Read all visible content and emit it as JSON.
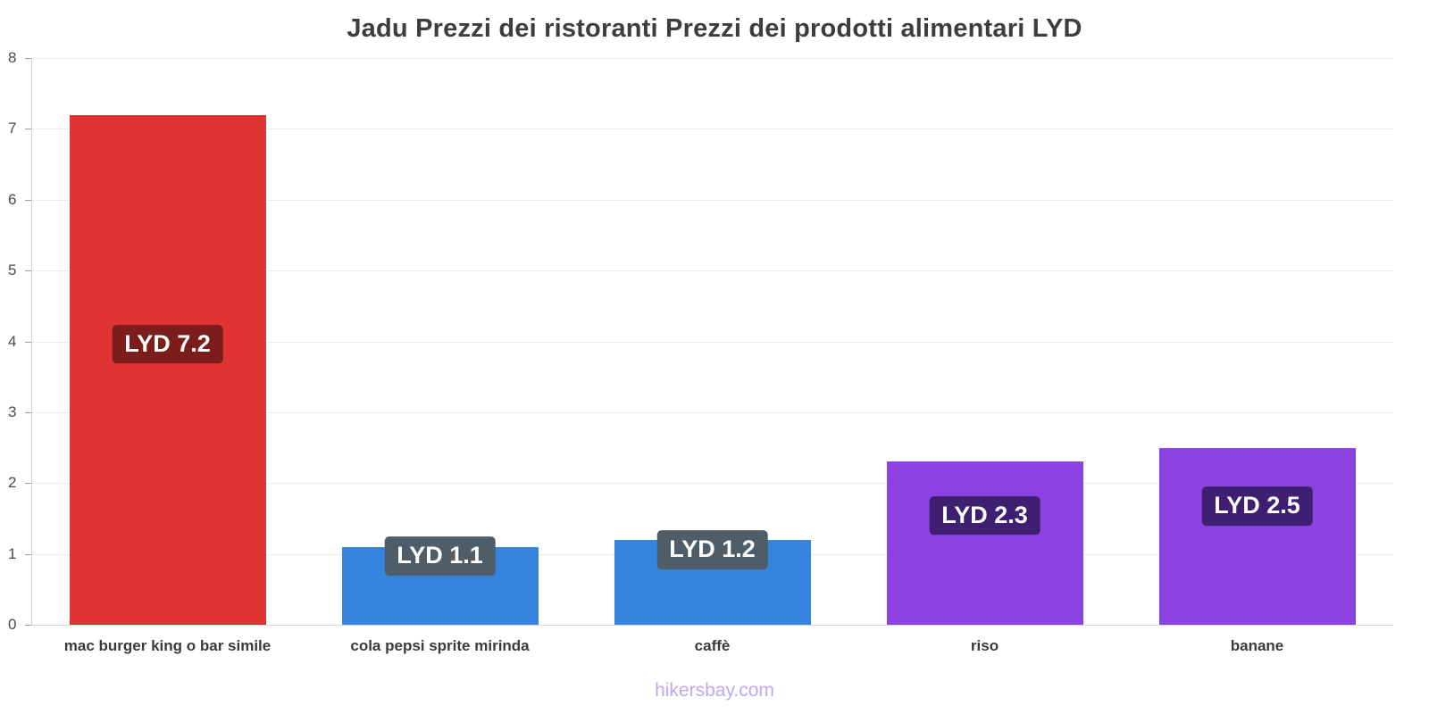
{
  "title": "Jadu Prezzi dei ristoranti Prezzi dei prodotti alimentari LYD",
  "footer": "hikersbay.com",
  "chart_data": {
    "type": "bar",
    "title": "Jadu Prezzi dei ristoranti Prezzi dei prodotti alimentari LYD",
    "currency": "LYD",
    "categories": [
      "mac burger king o bar simile",
      "cola pepsi sprite mirinda",
      "caffè",
      "riso",
      "banane"
    ],
    "values": [
      7.2,
      1.1,
      1.2,
      2.3,
      2.5
    ],
    "value_labels": [
      "LYD 7.2",
      "LYD 1.1",
      "LYD 1.2",
      "LYD 2.3",
      "LYD 2.5"
    ],
    "bar_colors": [
      "#e03432",
      "#3585de",
      "#3585de",
      "#8b42e0",
      "#8b42e0"
    ],
    "label_bg_colors": [
      "#7a1d1b",
      "#4e5d68",
      "#4e5d68",
      "#3e1f72",
      "#3e1f72"
    ],
    "xlabel": "",
    "ylabel": "",
    "ylim": [
      0,
      8
    ],
    "yticks": [
      0,
      1,
      2,
      3,
      4,
      5,
      6,
      7,
      8
    ],
    "grid": true,
    "legend": "none"
  }
}
